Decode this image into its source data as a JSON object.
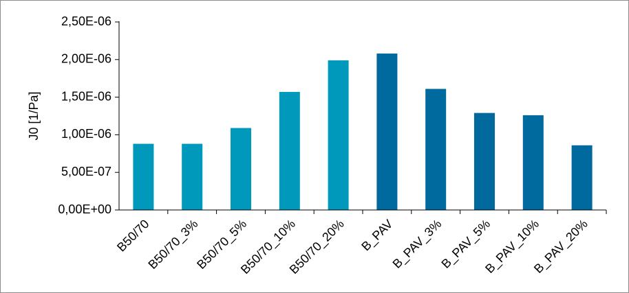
{
  "chart_data": {
    "type": "bar",
    "title": "",
    "xlabel": "",
    "ylabel": "J0 [1/Pa]",
    "ylim": [
      0,
      2.5e-06
    ],
    "yticks": [
      {
        "value": 0,
        "label": "0,00E+00"
      },
      {
        "value": 5e-07,
        "label": "5,00E-07"
      },
      {
        "value": 1e-06,
        "label": "1,00E-06"
      },
      {
        "value": 1.5e-06,
        "label": "1,50E-06"
      },
      {
        "value": 2e-06,
        "label": "2,00E-06"
      },
      {
        "value": 2.5e-06,
        "label": "2,50E-06"
      }
    ],
    "grid": false,
    "legend": "none",
    "categories": [
      "B50/70",
      "B50/70_3%",
      "B50/70_5%",
      "B50/70_10%",
      "B50/70_20%",
      "B_PAV",
      "B_PAV_3%",
      "B_PAV_5%",
      "B_PAV_10%",
      "B_PAV_20%"
    ],
    "values": [
      8.8e-07,
      8.8e-07,
      1.09e-06,
      1.57e-06,
      1.99e-06,
      2.08e-06,
      1.61e-06,
      1.29e-06,
      1.26e-06,
      8.6e-07
    ],
    "bar_colors": [
      "#0099bb",
      "#0099bb",
      "#0099bb",
      "#0099bb",
      "#0099bb",
      "#00699e",
      "#00699e",
      "#00699e",
      "#00699e",
      "#00699e"
    ],
    "axis_color": "#000000",
    "border_color": "#8c8c8c"
  }
}
